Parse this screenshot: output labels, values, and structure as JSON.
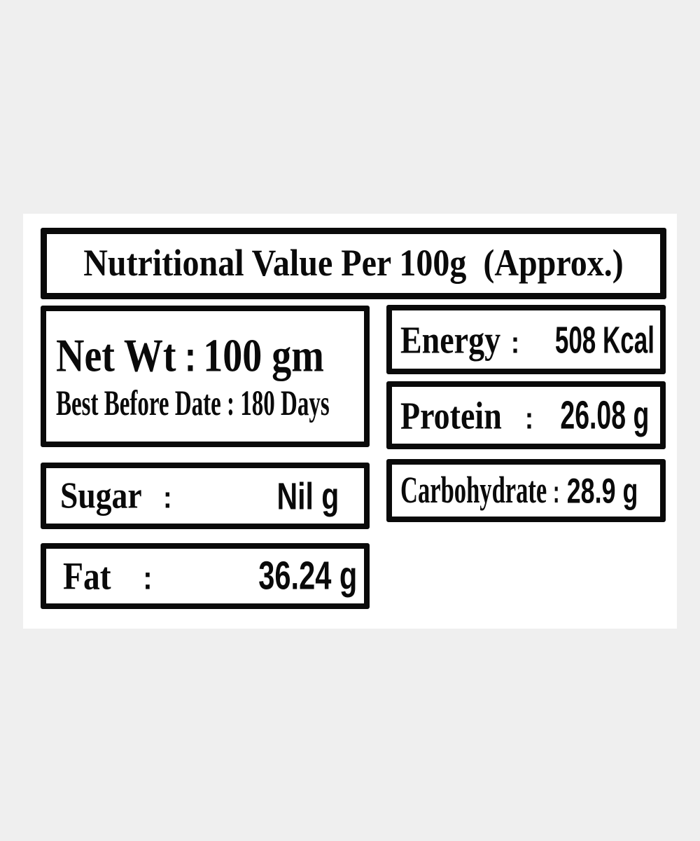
{
  "page": {
    "background_color": "#efefef",
    "card_background": "#ffffff",
    "border_color": "#0a0a0a",
    "text_color": "#0a0a0a"
  },
  "header": {
    "title": "Nutritional Value Per 100g  (Approx.)"
  },
  "net_wt_box": {
    "line1": {
      "label": "Net Wt",
      "colon": ":",
      "value": "100 gm"
    },
    "line2": {
      "label": "Best Before Date",
      "colon": " : ",
      "value": "180 Days"
    }
  },
  "nutrients": {
    "energy": {
      "label": "Energy",
      "colon": ":",
      "value": "508 Kcal"
    },
    "protein": {
      "label": "Protein",
      "colon": ":",
      "value": "26.08 g"
    },
    "sugar": {
      "label": "Sugar",
      "colon": ":",
      "value": "Nil g"
    },
    "carbohydrate": {
      "label": "Carbohydrate",
      "colon": ":",
      "value": "28.9 g"
    },
    "fat": {
      "label": "Fat",
      "colon": ":",
      "value": "36.24 g"
    }
  }
}
